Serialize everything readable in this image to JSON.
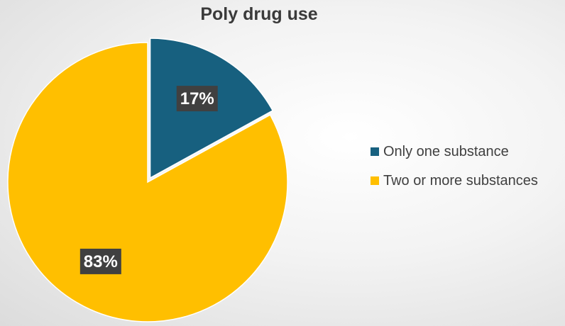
{
  "chart_data": {
    "type": "pie",
    "title": "Poly drug use",
    "slices": [
      {
        "name": "Only one substance",
        "value": 17,
        "label": "17%",
        "color": "#17607f",
        "exploded": true
      },
      {
        "name": "Two or more substances",
        "value": 83,
        "label": "83%",
        "color": "#ffbf00",
        "exploded": false
      }
    ],
    "legend_position": "right",
    "data_label_background": "#404040"
  }
}
